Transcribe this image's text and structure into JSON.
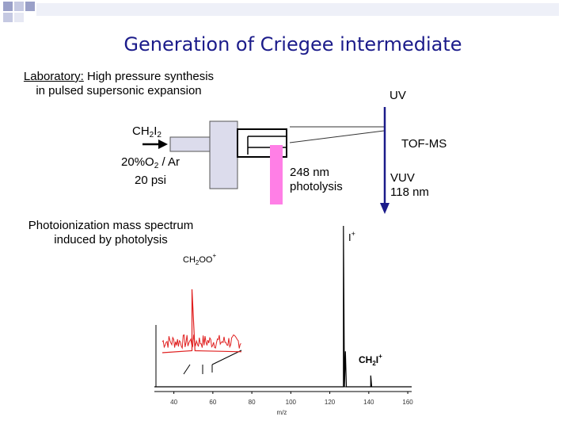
{
  "slide": {
    "title": "Generation of Criegee intermediate"
  },
  "lab": {
    "heading": "Laboratory:",
    "line1_rest": " High pressure synthesis",
    "line2": "in pulsed supersonic expansion"
  },
  "labels": {
    "uv": "UV",
    "tofms": "TOF-MS",
    "ch2i2": {
      "ch": "CH",
      "sub1": "2",
      "i": "I",
      "sub2": "2"
    },
    "gas_line1": {
      "a": "20%O",
      "sub": "2",
      "b": " / Ar"
    },
    "gas_line2": "20 psi",
    "photolysis_line1": "248 nm",
    "photolysis_line2": "photolysis",
    "vuv_line1": "VUV",
    "vuv_line2": "118 nm"
  },
  "spectrum_caption": {
    "line1": "Photoionization mass spectrum",
    "line2": "induced by photolysis"
  },
  "peak_labels": {
    "ch2oo": {
      "a": "CH",
      "sub": "2",
      "b": "OO",
      "sup": "+"
    },
    "iplus": {
      "a": "I",
      "sup": "+"
    },
    "ch2i": {
      "a": "CH",
      "sub": "2",
      "b": "I",
      "sup": "+"
    }
  },
  "chart_data": {
    "type": "line",
    "xlabel": "m/z",
    "x_ticks": [
      "40",
      "60",
      "80",
      "100",
      "120",
      "140",
      "160"
    ],
    "xlim": [
      30,
      162
    ],
    "series": [
      {
        "color": "#000000",
        "values": [
          [
            30,
            0
          ],
          [
            46,
            0
          ],
          [
            127,
            0
          ],
          [
            127,
            1.0
          ],
          [
            127.5,
            0
          ],
          [
            128,
            0.22
          ],
          [
            128.5,
            0
          ],
          [
            141,
            0
          ],
          [
            141,
            0.07
          ],
          [
            141.5,
            0
          ],
          [
            162,
            0
          ]
        ]
      },
      {
        "color": "#e02020",
        "values": [
          [
            40,
            0.08
          ],
          [
            46,
            0.1
          ],
          [
            46,
            0.72
          ],
          [
            46.6,
            0.1
          ],
          [
            56,
            0.09
          ]
        ]
      }
    ],
    "colors": {
      "title": "#1b1b8a",
      "uv_arrow": "#1b1b8a",
      "laser": "#ff7fe6",
      "chamber": "#dcdcec",
      "inset": "#e02020"
    }
  }
}
